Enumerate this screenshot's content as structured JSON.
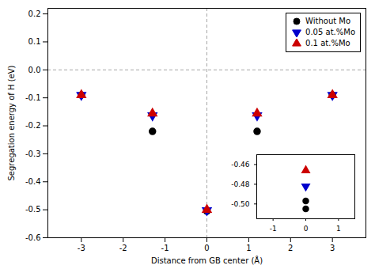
{
  "chart_data": [
    {
      "type": "scatter",
      "xlabel": "Distance from GB center (Å)",
      "ylabel": "Segregation energy of H (eV)",
      "x": [
        -3,
        -1.3,
        0,
        1.2,
        3
      ],
      "series": [
        {
          "name": "Without Mo",
          "color": "#000000",
          "marker": "circle",
          "values": [
            -0.09,
            -0.22,
            -0.505,
            -0.22,
            -0.09
          ]
        },
        {
          "name": "0.05 at.%Mo",
          "color": "#0000cc",
          "marker": "triangle-down",
          "values": [
            -0.09,
            -0.163,
            -0.502,
            -0.163,
            -0.09
          ]
        },
        {
          "name": "0.1 at.%Mo",
          "color": "#cc0000",
          "marker": "triangle-up",
          "values": [
            -0.09,
            -0.156,
            -0.5,
            -0.156,
            -0.09
          ]
        }
      ],
      "xlim": [
        -3.8,
        3.8
      ],
      "ylim": [
        -0.6,
        0.22
      ],
      "xticks": [
        -3,
        -2,
        -1,
        0,
        1,
        2,
        3
      ],
      "yticks": [
        -0.6,
        -0.5,
        -0.4,
        -0.3,
        -0.2,
        -0.1,
        {
          "value": 0,
          "label": "0.0"
        },
        0.1,
        0.2
      ],
      "vline": 0,
      "hline": 0,
      "legend": "upper right"
    },
    {
      "type": "scatter",
      "series": [
        {
          "color": "#000000",
          "marker": "circle",
          "x": [
            0,
            0
          ],
          "values": [
            -0.505,
            -0.497
          ]
        },
        {
          "color": "#0000cc",
          "marker": "triangle-down",
          "x": [
            0
          ],
          "values": [
            -0.482
          ]
        },
        {
          "color": "#cc0000",
          "marker": "triangle-up",
          "x": [
            0
          ],
          "values": [
            -0.466
          ]
        }
      ],
      "xlim": [
        -1.5,
        1.5
      ],
      "ylim": [
        -0.515,
        -0.45
      ],
      "xticks": [
        -1,
        0,
        1
      ],
      "yticks": [
        {
          "value": -0.5,
          "label": "-0.50"
        },
        -0.48,
        -0.46
      ]
    }
  ]
}
